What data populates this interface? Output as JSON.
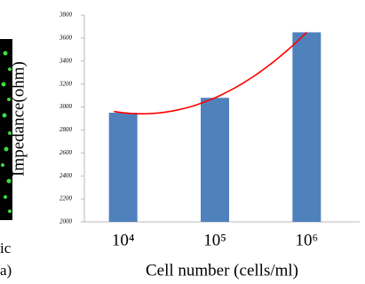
{
  "chart_data": {
    "type": "bar",
    "ylabel": "Impedance(ohm)",
    "xlabel": "Cell number (cells/ml)",
    "categories": [
      "10⁴",
      "10⁵",
      "10⁶"
    ],
    "values": [
      2950,
      3080,
      3650
    ],
    "color": "#4f81bd",
    "trendline_color": "#ff0000",
    "ylim": [
      2000,
      3800
    ],
    "yticks": [
      2000,
      2200,
      2400,
      2600,
      2800,
      3000,
      3200,
      3400,
      3600,
      3800
    ],
    "grid": false
  },
  "left_panel": {
    "caption_fragments": [
      "ic",
      "a)"
    ]
  }
}
